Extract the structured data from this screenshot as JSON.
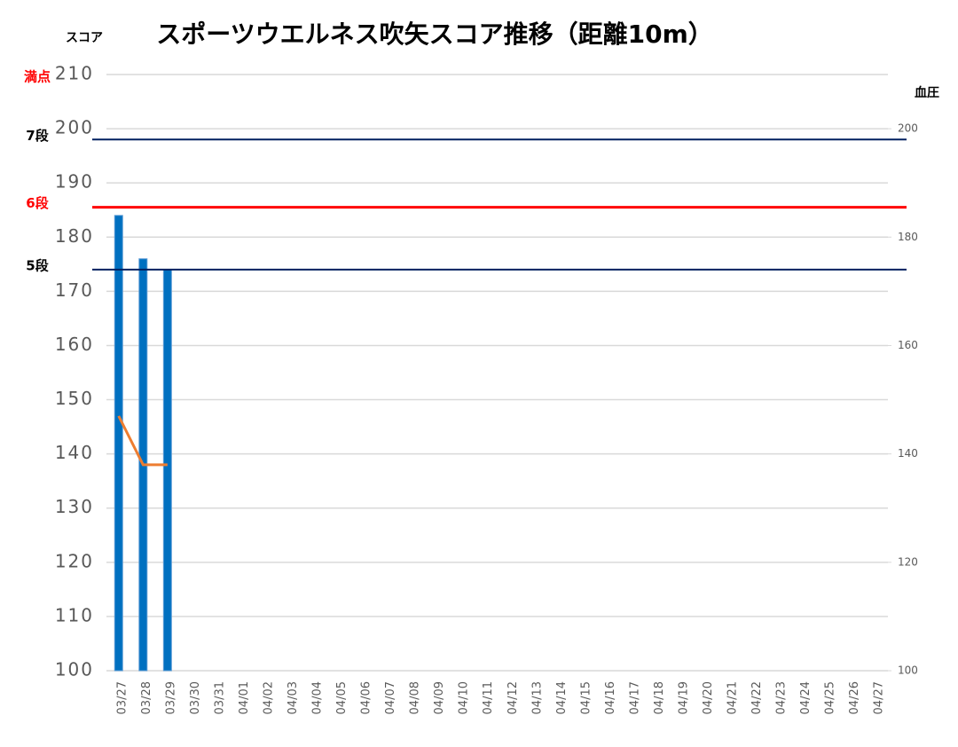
{
  "chart_data": {
    "type": "bar",
    "title": "スポーツウエルネス吹矢スコア推移（距離10m）",
    "y_label": "スコア",
    "y2_label": "血圧",
    "categories": [
      "03/27",
      "03/28",
      "03/29",
      "03/30",
      "03/31",
      "04/01",
      "04/02",
      "04/03",
      "04/04",
      "04/05",
      "04/06",
      "04/07",
      "04/08",
      "04/09",
      "04/10",
      "04/11",
      "04/12",
      "04/13",
      "04/14",
      "04/15",
      "04/16",
      "04/17",
      "04/18",
      "04/19",
      "04/20",
      "04/21",
      "04/22",
      "04/23",
      "04/24",
      "04/25",
      "04/26",
      "04/27"
    ],
    "series": [
      {
        "type": "bar",
        "color": "#0070c0",
        "values": [
          184,
          176,
          174,
          null,
          null,
          null,
          null,
          null,
          null,
          null,
          null,
          null,
          null,
          null,
          null,
          null,
          null,
          null,
          null,
          null,
          null,
          null,
          null,
          null,
          null,
          null,
          null,
          null,
          null,
          null,
          null,
          null
        ]
      },
      {
        "type": "line",
        "axis": "y2",
        "color": "#ed7d31",
        "values": [
          147,
          138,
          138,
          null,
          null,
          null,
          null,
          null,
          null,
          null,
          null,
          null,
          null,
          null,
          null,
          null,
          null,
          null,
          null,
          null,
          null,
          null,
          null,
          null,
          null,
          null,
          null,
          null,
          null,
          null,
          null,
          null
        ]
      }
    ],
    "ylim": [
      100,
      210
    ],
    "yticks": [
      100,
      110,
      120,
      130,
      140,
      150,
      160,
      170,
      180,
      190,
      200,
      210
    ],
    "y2lim": [
      100,
      210
    ],
    "y2ticks": [
      100,
      120,
      140,
      160,
      180,
      200
    ],
    "grid": true,
    "annotations": [
      {
        "text": "満点",
        "y": 210,
        "color": "#ff0000"
      }
    ],
    "reference_lines": [
      {
        "label": "7段",
        "value": 198,
        "color": "#002060",
        "label_color": "#000000",
        "width": 2
      },
      {
        "label": "6段",
        "value": 185.5,
        "color": "#ff0000",
        "label_color": "#ff0000",
        "width": 3
      },
      {
        "label": "5段",
        "value": 174,
        "color": "#002060",
        "label_color": "#000000",
        "width": 2
      }
    ]
  }
}
